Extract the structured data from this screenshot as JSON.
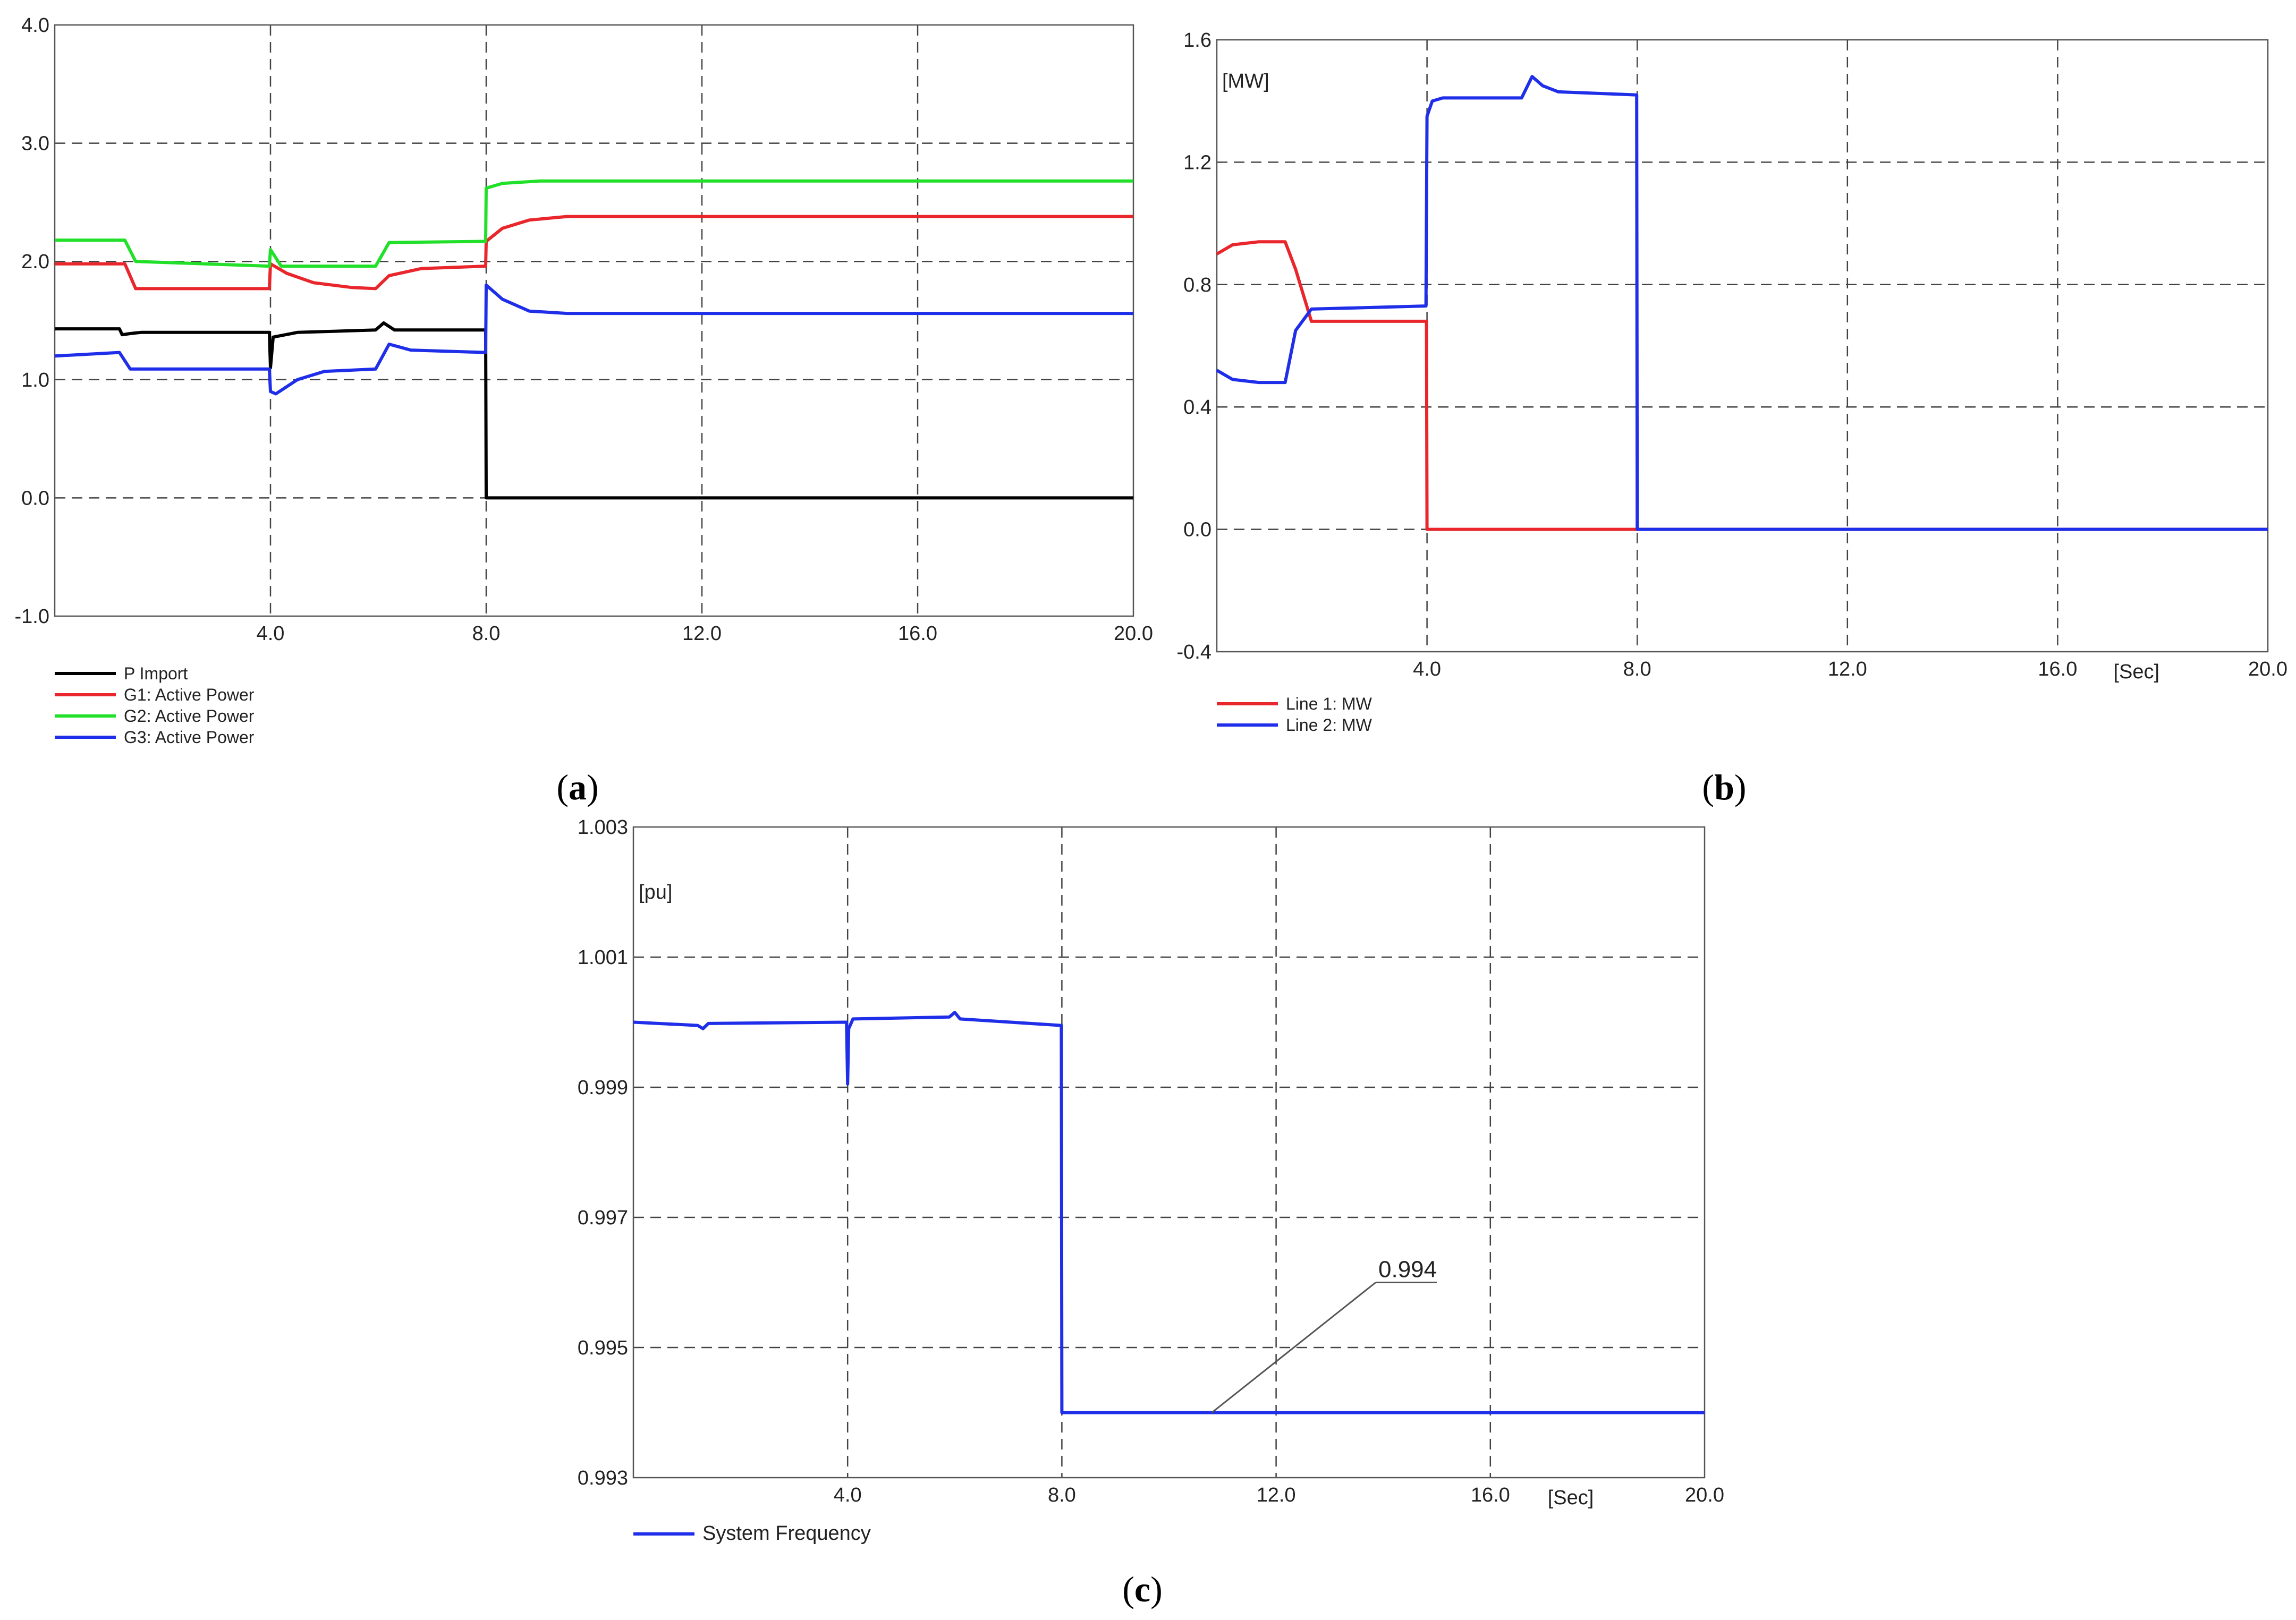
{
  "panels": [
    {
      "id": "a",
      "caption": "(a)",
      "caption_letter": "a",
      "chart_data": {
        "type": "line",
        "xlim": [
          0,
          20
        ],
        "ylim": [
          -1.0,
          4.0
        ],
        "x_ticks": [
          4.0,
          8.0,
          12.0,
          16.0,
          20.0
        ],
        "x_tick_labels": [
          "4.0",
          "8.0",
          "12.0",
          "16.0",
          "20.0"
        ],
        "y_ticks": [
          -1.0,
          0.0,
          1.0,
          2.0,
          3.0,
          4.0
        ],
        "y_tick_labels": [
          "-1.0",
          "0.0",
          "1.0",
          "2.0",
          "3.0",
          "4.0"
        ],
        "xlabel": "",
        "ylabel": "",
        "grid": true,
        "legend_position": "bottom-left",
        "series": [
          {
            "name": "P Import",
            "color": "#000000",
            "x": [
              0,
              1.2,
              1.25,
              1.4,
              1.6,
              3.98,
              4.0,
              4.05,
              4.5,
              5.95,
              6.1,
              6.3,
              7.99,
              8.0,
              20
            ],
            "y": [
              1.43,
              1.43,
              1.38,
              1.39,
              1.4,
              1.4,
              1.1,
              1.36,
              1.4,
              1.42,
              1.48,
              1.42,
              1.42,
              0.0,
              0.0
            ]
          },
          {
            "name": "G1: Active Power",
            "color": "#e8262c",
            "x": [
              0,
              1.3,
              1.5,
              3.98,
              4.0,
              4.3,
              4.8,
              5.5,
              5.95,
              6.2,
              6.8,
              7.99,
              8.0,
              8.3,
              8.8,
              9.5,
              20
            ],
            "y": [
              1.98,
              1.98,
              1.77,
              1.77,
              1.98,
              1.9,
              1.82,
              1.78,
              1.77,
              1.88,
              1.94,
              1.96,
              2.17,
              2.28,
              2.35,
              2.38,
              2.38
            ]
          },
          {
            "name": "G2: Active Power",
            "color": "#22e02a",
            "x": [
              0,
              1.3,
              1.5,
              3.98,
              4.0,
              4.2,
              5.95,
              6.2,
              7.99,
              8.0,
              8.3,
              9.0,
              20
            ],
            "y": [
              2.18,
              2.18,
              2.0,
              1.96,
              2.1,
              1.96,
              1.96,
              2.16,
              2.17,
              2.62,
              2.66,
              2.68,
              2.68
            ]
          },
          {
            "name": "G3: Active Power",
            "color": "#1f2ee8",
            "x": [
              0,
              1.2,
              1.4,
              3.98,
              4.0,
              4.1,
              4.5,
              5.0,
              5.95,
              6.2,
              6.6,
              7.99,
              8.0,
              8.3,
              8.8,
              9.5,
              20
            ],
            "y": [
              1.2,
              1.23,
              1.09,
              1.09,
              0.9,
              0.88,
              1.0,
              1.07,
              1.09,
              1.3,
              1.25,
              1.23,
              1.8,
              1.68,
              1.58,
              1.56,
              1.56
            ]
          }
        ]
      }
    },
    {
      "id": "b",
      "caption": "(b)",
      "caption_letter": "b",
      "unit_label": "[MW]",
      "x_unit_label": "[Sec]",
      "chart_data": {
        "type": "line",
        "xlim": [
          0,
          20
        ],
        "ylim": [
          -0.4,
          1.6
        ],
        "x_ticks": [
          4.0,
          8.0,
          12.0,
          16.0,
          20.0
        ],
        "x_tick_labels": [
          "4.0",
          "8.0",
          "12.0",
          "16.0",
          "20.0"
        ],
        "y_ticks": [
          -0.4,
          0.0,
          0.4,
          0.8,
          1.2,
          1.6
        ],
        "y_tick_labels": [
          "-0.4",
          "0.0",
          "0.4",
          "0.8",
          "1.2",
          "1.6"
        ],
        "xlabel": "[Sec]",
        "ylabel": "[MW]",
        "grid": true,
        "legend_position": "bottom-left",
        "series": [
          {
            "name": "Line 1: MW",
            "color": "#e8262c",
            "x": [
              0,
              0.3,
              0.8,
              1.3,
              1.5,
              1.8,
              3.99,
              4.0,
              20
            ],
            "y": [
              0.9,
              0.93,
              0.94,
              0.94,
              0.85,
              0.68,
              0.68,
              0.0,
              0.0
            ]
          },
          {
            "name": "Line 2: MW",
            "color": "#1f2ee8",
            "x": [
              0,
              0.3,
              0.8,
              1.3,
              1.5,
              1.8,
              3.98,
              4.0,
              4.1,
              4.3,
              5.8,
              6.0,
              6.2,
              6.5,
              7.99,
              8.0,
              20
            ],
            "y": [
              0.52,
              0.49,
              0.48,
              0.48,
              0.65,
              0.72,
              0.73,
              1.35,
              1.4,
              1.41,
              1.41,
              1.48,
              1.45,
              1.43,
              1.42,
              0.0,
              0.0
            ]
          }
        ]
      }
    },
    {
      "id": "c",
      "caption": "(c)",
      "caption_letter": "c",
      "unit_label": "[pu]",
      "x_unit_label": "[Sec]",
      "annotation": "0.994",
      "chart_data": {
        "type": "line",
        "xlim": [
          0,
          20
        ],
        "ylim": [
          0.993,
          1.003
        ],
        "x_ticks": [
          4.0,
          8.0,
          12.0,
          16.0,
          20.0
        ],
        "x_tick_labels": [
          "4.0",
          "8.0",
          "12.0",
          "16.0",
          "20.0"
        ],
        "y_ticks": [
          0.993,
          0.995,
          0.997,
          0.999,
          1.001,
          1.003
        ],
        "y_tick_labels": [
          "0.993",
          "0.995",
          "0.997",
          "0.999",
          "1.001",
          "1.003"
        ],
        "xlabel": "[Sec]",
        "ylabel": "[pu]",
        "grid": true,
        "legend_position": "bottom-left",
        "annotation_point": [
          10.8,
          0.994
        ],
        "annotation_text_at": [
          15.0,
          0.996
        ],
        "series": [
          {
            "name": "System Frequency",
            "color": "#1f2ee8",
            "x": [
              0,
              1.2,
              1.3,
              1.4,
              3.98,
              4.0,
              4.02,
              4.1,
              5.9,
              6.0,
              6.1,
              7.99,
              8.0,
              20
            ],
            "y": [
              1.0,
              0.99995,
              0.9999,
              0.99998,
              1.0,
              0.99905,
              0.9999,
              1.00005,
              1.00008,
              1.00015,
              1.00005,
              0.99995,
              0.994,
              0.994
            ]
          }
        ]
      }
    }
  ]
}
